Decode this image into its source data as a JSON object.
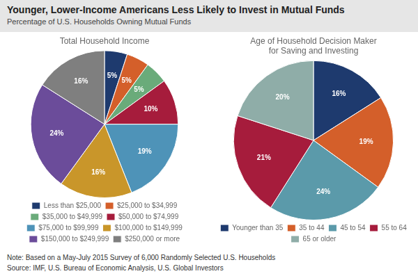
{
  "title": "Younger, Lower-Income Americans Less Likely to Invest in Mutual Funds",
  "subtitle": "Percentage of U.S. Households Owning Mutual Funds",
  "annotations": [
    "Note: Based on a May-July 2015 Survey of 6,000 Randomly Selected U.S. Households",
    "Source: IMF, U.S. Bureau of Economic Analysis, U.S. Global Investors"
  ],
  "chart_data": [
    {
      "type": "pie",
      "title": "Total Household Income",
      "categories": [
        "Less than $25,000",
        "$25,000 to $34,999",
        "$35,000 to $49,999",
        "$50,000 to $74,999",
        "$75,000 to $99,999",
        "$100,000 to $149,999",
        "$150,000 to $249,999",
        "$250,000 or more"
      ],
      "values": [
        5,
        5,
        5,
        10,
        19,
        16,
        24,
        16
      ],
      "value_labels": [
        "5%",
        "5%",
        "5%",
        "10%",
        "19%",
        "16%",
        "24%",
        "16%"
      ],
      "colors": [
        "#1e3a6e",
        "#d45f2a",
        "#6aab7a",
        "#a61c3c",
        "#4e93b8",
        "#c9962a",
        "#6b4c9a",
        "#7f7f7f"
      ],
      "data_labels": true,
      "legend": "bottom"
    },
    {
      "type": "pie",
      "title": "Age of Household Decision Maker\nfor Saving and Investing",
      "categories": [
        "Younger than 35",
        "35 to 44",
        "45 to 54",
        "55 to 64",
        "65 or older"
      ],
      "values": [
        16,
        19,
        24,
        21,
        20
      ],
      "value_labels": [
        "16%",
        "19%",
        "24%",
        "21%",
        "20%"
      ],
      "colors": [
        "#1e3a6e",
        "#d45f2a",
        "#5b9aaa",
        "#a61c3c",
        "#8fada8"
      ],
      "data_labels": true,
      "legend": "bottom"
    }
  ]
}
